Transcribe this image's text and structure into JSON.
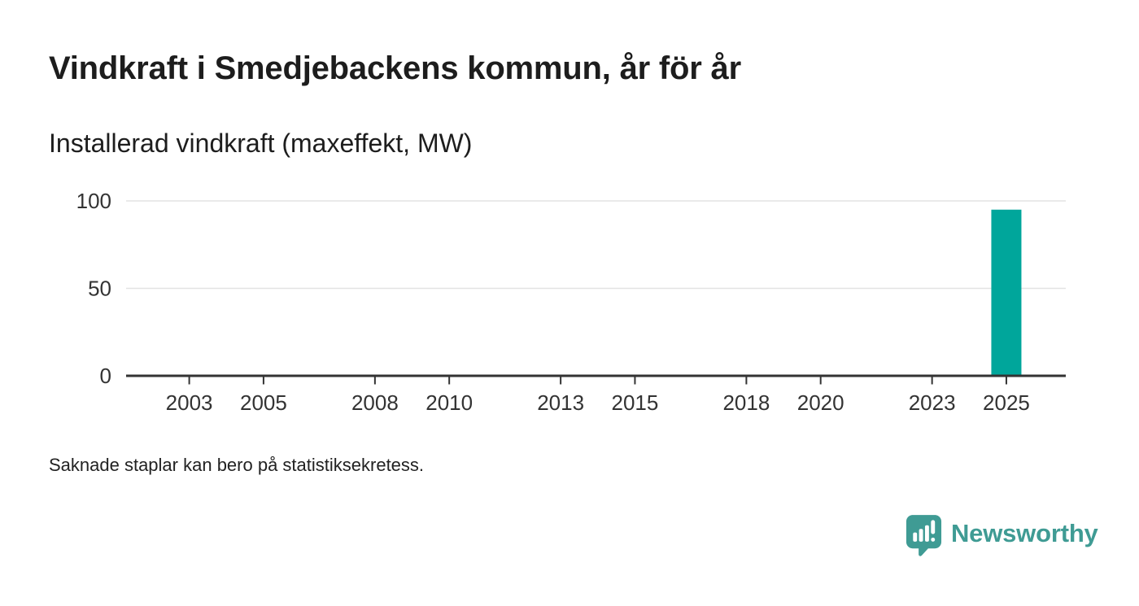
{
  "header": {
    "title": "Vindkraft i Smedjebackens kommun, år för år",
    "subtitle": "Installerad vindkraft (maxeffekt, MW)"
  },
  "footnote": "Saknade staplar kan bero på statistiksekretess.",
  "branding": {
    "name": "Newsworthy",
    "color": "#3f9b94",
    "icon": "bar-chart-speech-bubble"
  },
  "chart_data": {
    "type": "bar",
    "title": "Vindkraft i Smedjebackens kommun, år för år",
    "subtitle": "Installerad vindkraft (maxeffekt, MW)",
    "unit": "MW",
    "bars": [
      {
        "x": 2025,
        "value": 95
      }
    ],
    "x_tick_labels": [
      2003,
      2005,
      2008,
      2010,
      2013,
      2015,
      2018,
      2020,
      2023,
      2025
    ],
    "y_ticks": [
      0,
      50,
      100
    ],
    "xlim": [
      2001.3,
      2026.6
    ],
    "ylim": [
      0,
      100
    ],
    "grid": "horizontal-only",
    "legend": "none",
    "bar_color": "#00a69b",
    "axis_color": "#333333",
    "gridline_color": "#e3e3e3",
    "note": "Saknade staplar kan bero på statistiksekretess."
  }
}
